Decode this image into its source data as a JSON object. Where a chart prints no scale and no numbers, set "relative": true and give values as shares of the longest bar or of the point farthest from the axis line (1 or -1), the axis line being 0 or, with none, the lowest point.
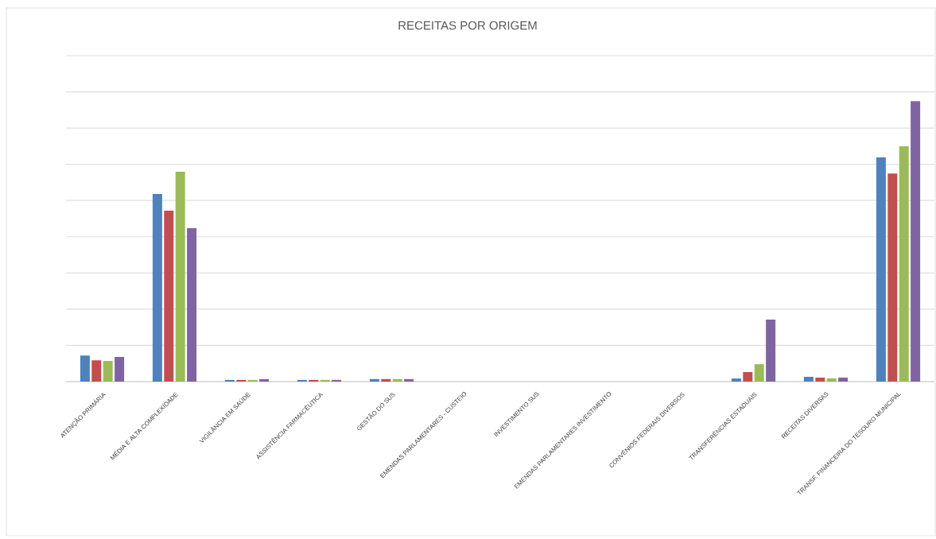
{
  "chart_data": {
    "type": "bar",
    "title": "RECEITAS POR ORIGEM",
    "relative": true,
    "grid": "y",
    "categories": [
      "ATENÇÃO PRIMÁRIA",
      "MÉDIA E ALTA COMPLEXIDADE",
      "VIGILÂNCIA EM SAÚDE",
      "ASSISTÊNCIA FARMACÊUTICA",
      "GESTÃO DO SUS",
      "EMENDAS PARLAMENTARES - CUSTEIO",
      "INVESTIMENTO SUS",
      "EMENDAS PARLAMENTARES INVESTIMENTO",
      "CONVÊNIOS FEDERAIS DIVERSOS",
      "TRANSFERÊNCIAS ESTADUAIS",
      "RECEITAS DIVERSAS",
      "TRANSF. FINANCEIRA DO TESOURO MUNICIPAL"
    ],
    "series": [
      {
        "color": "#4f81bd",
        "values": [
          0.093,
          0.669,
          0.006,
          0.006,
          0.009,
          null,
          null,
          null,
          null,
          0.011,
          0.017,
          0.799
        ]
      },
      {
        "color": "#c0504d",
        "values": [
          0.076,
          0.609,
          0.006,
          0.006,
          0.009,
          null,
          null,
          null,
          null,
          0.034,
          0.014,
          0.742
        ]
      },
      {
        "color": "#9bbb59",
        "values": [
          0.074,
          0.748,
          0.006,
          0.006,
          0.009,
          null,
          null,
          null,
          null,
          0.062,
          0.011,
          0.839
        ]
      },
      {
        "color": "#8064a2",
        "values": [
          0.088,
          0.547,
          0.009,
          0.006,
          0.009,
          null,
          null,
          null,
          null,
          0.221,
          0.014,
          1
        ]
      }
    ]
  }
}
